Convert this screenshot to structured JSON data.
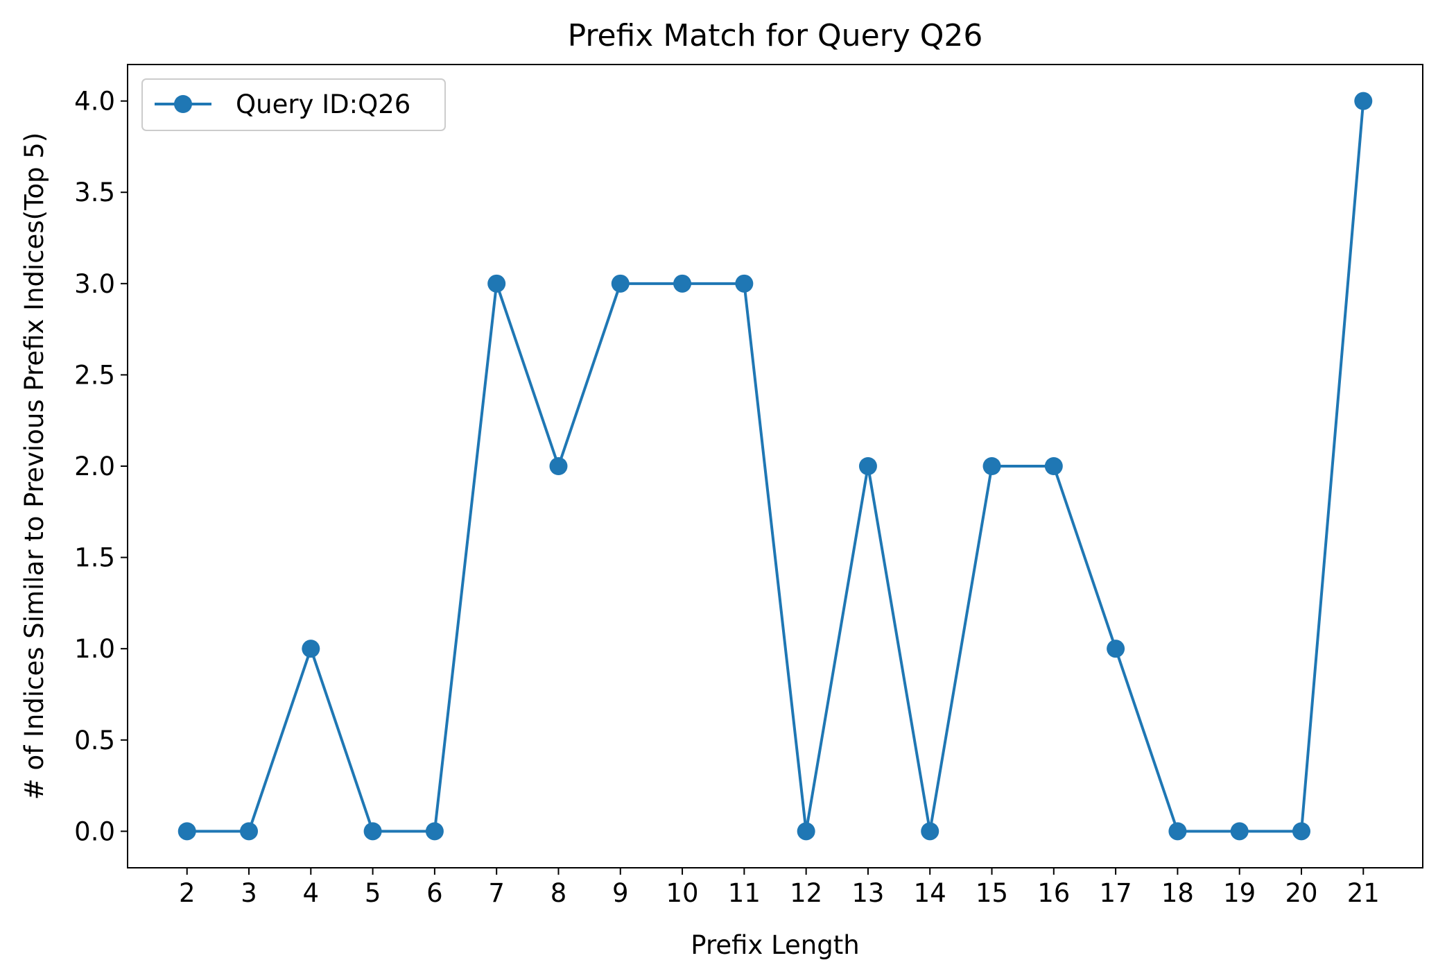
{
  "chart_data": {
    "type": "line",
    "title": "Prefix Match for Query Q26",
    "xlabel": "Prefix Length",
    "ylabel": "# of Indices Similar to Previous Prefix Indices(Top 5)",
    "x": [
      2,
      3,
      4,
      5,
      6,
      7,
      8,
      9,
      10,
      11,
      12,
      13,
      14,
      15,
      16,
      17,
      18,
      19,
      20,
      21
    ],
    "x_tick_labels": [
      "2",
      "3",
      "4",
      "5",
      "6",
      "7",
      "8",
      "9",
      "10",
      "11",
      "12",
      "13",
      "14",
      "15",
      "16",
      "17",
      "18",
      "19",
      "20",
      "21"
    ],
    "y_ticks": [
      0.0,
      0.5,
      1.0,
      1.5,
      2.0,
      2.5,
      3.0,
      3.5,
      4.0
    ],
    "y_tick_labels": [
      "0.0",
      "0.5",
      "1.0",
      "1.5",
      "2.0",
      "2.5",
      "3.0",
      "3.5",
      "4.0"
    ],
    "xlim": [
      1.04,
      21.96
    ],
    "ylim": [
      -0.2,
      4.2
    ],
    "grid": false,
    "legend_position": "top-left",
    "series": [
      {
        "name": "Query ID:Q26",
        "color": "#1f77b4",
        "marker": "circle",
        "values": [
          0,
          0,
          1,
          0,
          0,
          3,
          2,
          3,
          3,
          3,
          0,
          2,
          0,
          2,
          2,
          1,
          0,
          0,
          0,
          4
        ]
      }
    ]
  }
}
